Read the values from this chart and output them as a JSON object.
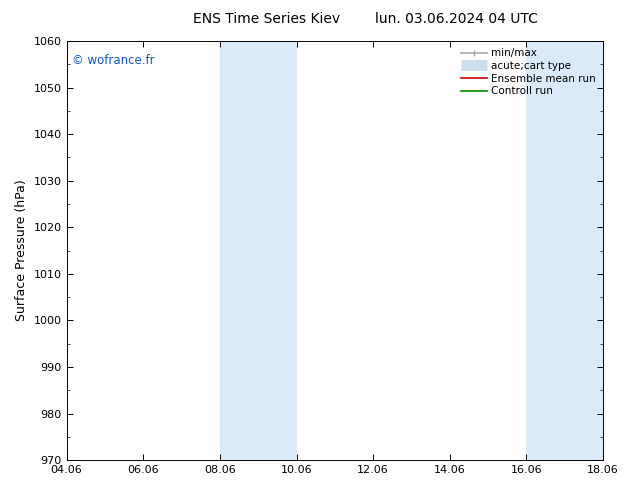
{
  "title_left": "ENS Time Series Kiev",
  "title_right": "lun. 03.06.2024 04 UTC",
  "ylabel": "Surface Pressure (hPa)",
  "ylim": [
    970,
    1060
  ],
  "yticks": [
    970,
    980,
    990,
    1000,
    1010,
    1020,
    1030,
    1040,
    1050,
    1060
  ],
  "xtick_labels": [
    "04.06",
    "06.06",
    "08.06",
    "10.06",
    "12.06",
    "14.06",
    "16.06",
    "18.06"
  ],
  "xtick_positions": [
    0,
    2,
    4,
    6,
    8,
    10,
    12,
    14
  ],
  "xlim": [
    0,
    14
  ],
  "shaded_bands": [
    {
      "xmin": 4,
      "xmax": 6
    },
    {
      "xmin": 12,
      "xmax": 14
    }
  ],
  "shaded_color": "#daeaf8",
  "watermark": "© wofrance.fr",
  "watermark_color": "#1155cc",
  "legend_entries": [
    {
      "label": "min/max",
      "color": "#aaaaaa",
      "lw": 1.2,
      "style": "line_with_caps"
    },
    {
      "label": "acute;cart type",
      "color": "#ccddee",
      "lw": 8,
      "style": "thick"
    },
    {
      "label": "Ensemble mean run",
      "color": "#cc0000",
      "lw": 1.2,
      "style": "line"
    },
    {
      "label": "Controll run",
      "color": "#008800",
      "lw": 1.2,
      "style": "line"
    }
  ],
  "background_color": "#ffffff",
  "title_fontsize": 10,
  "tick_fontsize": 8,
  "ylabel_fontsize": 9,
  "legend_fontsize": 7.5
}
